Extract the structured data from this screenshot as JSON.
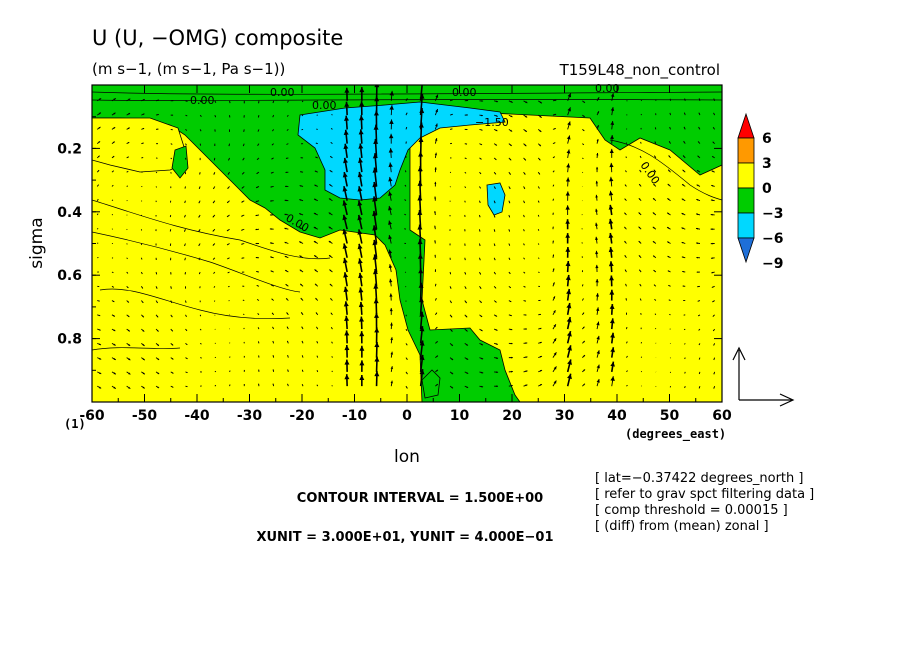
{
  "header": {
    "title": "U (U, −OMG) composite",
    "units": "(m s−1, (m s−1, Pa s−1))",
    "run_name": "T159L48_non_control"
  },
  "chart_data": {
    "type": "contour-vector",
    "ylabel": "sigma",
    "xlabel": "lon",
    "x_unit_label": "(degrees_east)",
    "corner_label": "(1)",
    "xlim": [
      -60,
      60
    ],
    "ylim_top_to_bottom": [
      0.0,
      1.0
    ],
    "x_ticks": [
      -60,
      -50,
      -40,
      -30,
      -20,
      -10,
      0,
      10,
      20,
      30,
      40,
      50,
      60
    ],
    "x_tick_labels": [
      "-60",
      "-50",
      "-40",
      "-30",
      "-20",
      "-10",
      "0",
      "10",
      "20",
      "30",
      "40",
      "50",
      "60"
    ],
    "y_ticks": [
      0.2,
      0.4,
      0.6,
      0.8
    ],
    "y_tick_labels": [
      "0.2",
      "0.4",
      "0.6",
      "0.8"
    ],
    "contour_interval": 1.5,
    "fill_levels": [
      -9,
      -6,
      -3,
      0,
      3,
      6
    ],
    "fill_colors": [
      "#1e6fd8",
      "#00d8ff",
      "#00cc00",
      "#ffff00",
      "#ff9900",
      "#ff0000"
    ],
    "colorbar_labels": [
      "6",
      "3",
      "0",
      "−3",
      "−6",
      "−9"
    ],
    "contour_labels": [
      "0.00",
      "0.00",
      "0.00",
      "0.00",
      "0.00",
      "0.00",
      "0.00",
      "−1.50"
    ],
    "regions": {
      "yellow_background": "positive anomaly (0 to 3)",
      "green_upper": "negative anomaly (−3 to 0)",
      "cyan_cores": "(−6 to −3)"
    },
    "notes": {
      "contour_interval": "CONTOUR INTERVAL = 1.500E+00",
      "vector_units": "XUNIT = 3.000E+01, YUNIT = 4.000E−01",
      "info_lines": [
        "[ lat=−0.37422 degrees_north ]",
        "[ refer to grav spct filtering data ]",
        "[ comp threshold = 0.00015 ]",
        "[ (diff) from (mean) zonal ]"
      ]
    }
  }
}
